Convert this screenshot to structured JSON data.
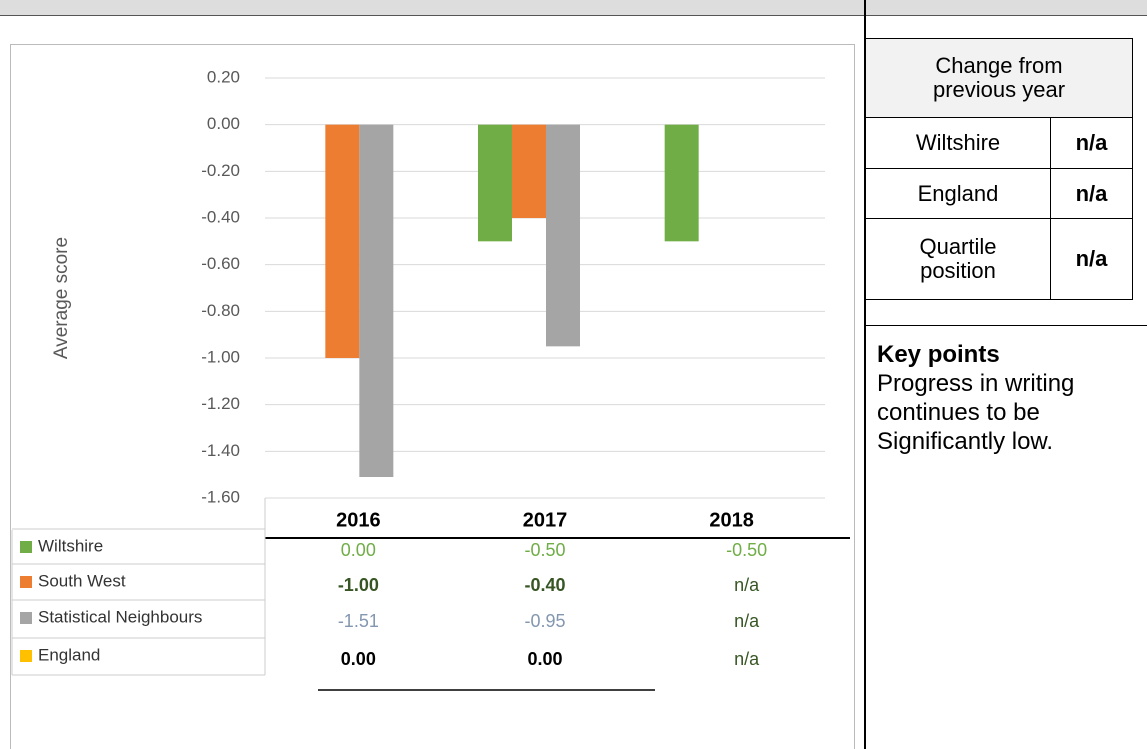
{
  "chart_data": {
    "type": "bar",
    "ylabel": "Average score",
    "categories": [
      "2016",
      "2017",
      "2018"
    ],
    "series": [
      {
        "name": "Wiltshire",
        "color": "#70ad47",
        "values": [
          0,
          -0.5,
          -0.5
        ],
        "value_labels": [
          "0.00",
          "-0.50",
          "-0.50"
        ]
      },
      {
        "name": "South West",
        "color": "#ed7d31",
        "values": [
          -1.0,
          -0.4,
          null
        ],
        "value_labels": [
          "-1.00",
          "-0.40",
          "n/a"
        ]
      },
      {
        "name": "Statistical Neighbours",
        "color": "#a5a5a5",
        "values": [
          -1.51,
          -0.95,
          null
        ],
        "value_labels": [
          "-1.51",
          "-0.95",
          "n/a"
        ]
      },
      {
        "name": "England",
        "color": "#ffc000",
        "values": [
          0,
          0,
          null
        ],
        "value_labels": [
          "0.00",
          "0.00",
          "n/a"
        ]
      }
    ],
    "ylim": [
      -1.6,
      0.2
    ],
    "yticks": [
      {
        "value": 0.2,
        "label": "0.20"
      },
      {
        "value": 0,
        "label": "0.00"
      },
      {
        "value": -0.2,
        "label": "-0.20"
      },
      {
        "value": -0.4,
        "label": "-0.40"
      },
      {
        "value": -0.6,
        "label": "-0.60"
      },
      {
        "value": -0.8,
        "label": "-0.80"
      },
      {
        "value": -1.0,
        "label": "-1.00"
      },
      {
        "value": -1.2,
        "label": "-1.20"
      },
      {
        "value": -1.4,
        "label": "-1.40"
      },
      {
        "value": -1.6,
        "label": "-1.60"
      }
    ],
    "grid": true
  },
  "side_table": {
    "header": "Change from previous year",
    "rows": [
      [
        "Wiltshire",
        "n/a"
      ],
      [
        "England",
        "n/a"
      ],
      [
        "Quartile position",
        "n/a"
      ]
    ]
  },
  "key_points": {
    "title": "Key points",
    "text": "Progress in writing continues to be Significantly low."
  }
}
